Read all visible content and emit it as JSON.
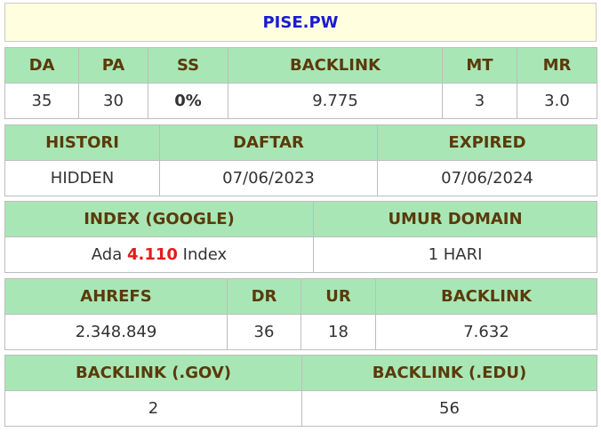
{
  "domain_title": "PISE.PW",
  "row1": {
    "headers": [
      "DA",
      "PA",
      "SS",
      "BACKLINK",
      "MT",
      "MR"
    ],
    "values": [
      "35",
      "30",
      "0%",
      "9.775",
      "3",
      "3.0"
    ]
  },
  "row2": {
    "headers": [
      "HISTORI",
      "DAFTAR",
      "EXPIRED"
    ],
    "values": [
      "HIDDEN",
      "07/06/2023",
      "07/06/2024"
    ]
  },
  "row3": {
    "headers": [
      "INDEX (GOOGLE)",
      "UMUR DOMAIN"
    ],
    "index_prefix": "Ada",
    "index_count": "4.110",
    "index_suffix": "Index",
    "umur": "1 HARI"
  },
  "row4": {
    "headers": [
      "AHREFS",
      "DR",
      "UR",
      "BACKLINK"
    ],
    "values": [
      "2.348.849",
      "36",
      "18",
      "7.632"
    ]
  },
  "row5": {
    "headers": [
      "BACKLINK (.GOV)",
      "BACKLINK (.EDU)"
    ],
    "values": [
      "2",
      "56"
    ]
  },
  "colors": {
    "header_bg": "#a9e6b5",
    "header_text": "#5a3a0a",
    "title_bg": "#ffffe0",
    "title_text": "#1a1ad4",
    "ss_value": "#4ccc1f",
    "index_count": "#e41b1b"
  }
}
